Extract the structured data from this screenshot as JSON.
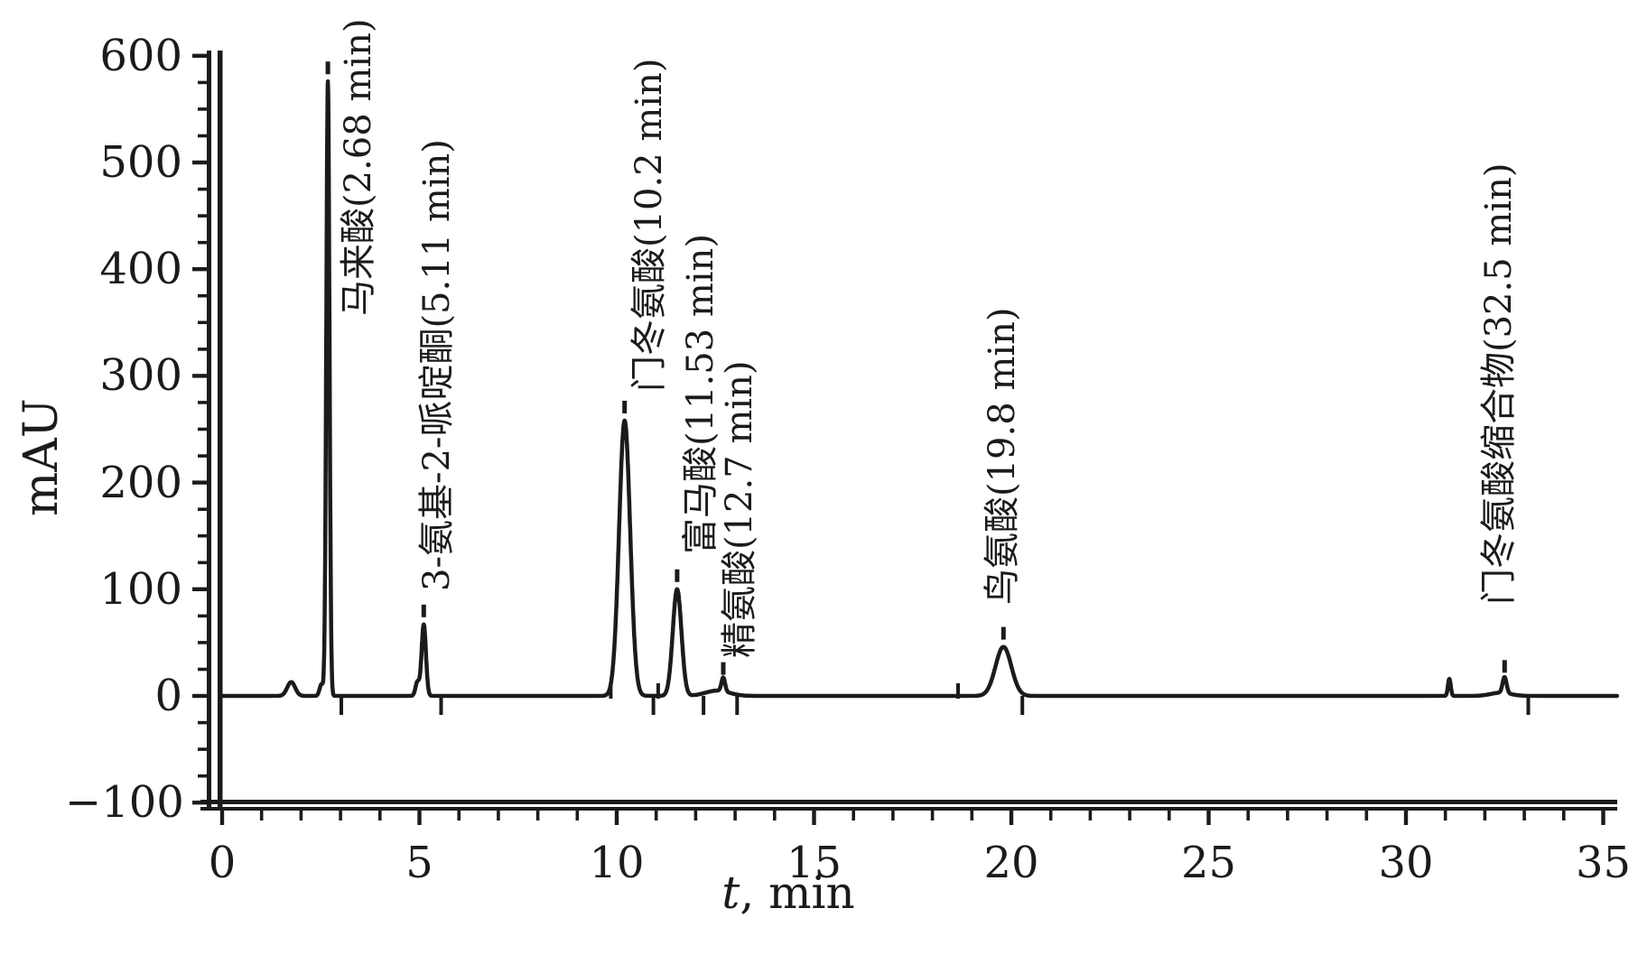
{
  "figure": {
    "y_axis_title": "mAU",
    "x_axis_title_var": "t",
    "x_axis_title_unit": ", min"
  },
  "chart_data": {
    "type": "line",
    "title": "",
    "xlabel": "t, min",
    "ylabel": "mAU",
    "xlim": [
      0,
      35
    ],
    "ylim": [
      -100,
      600
    ],
    "grid": "off",
    "legend": "none",
    "line_color": "#1b1b1b",
    "background_color": "#ffffff",
    "x_major_ticks": [
      0,
      5,
      10,
      15,
      20,
      25,
      30,
      35
    ],
    "x_minor_tick_step_min": 1,
    "y_major_ticks": [
      600,
      500,
      400,
      300,
      200,
      100,
      0,
      -100
    ],
    "y_minor_tick_step_mau": 25,
    "peaks": [
      {
        "name": "马来酸",
        "annotation": "马来酸(2.68 min)",
        "retention_time_min": 2.68,
        "height_mau": 576,
        "sigma_min": 0.04
      },
      {
        "name": "3-氨基-2-哌啶酮",
        "annotation": "3-氨基-2-哌啶酮(5.11 min)",
        "retention_time_min": 5.11,
        "height_mau": 67,
        "sigma_min": 0.055
      },
      {
        "name": "门冬氨酸",
        "annotation": "门冬氨酸(10.2 min)",
        "retention_time_min": 10.2,
        "height_mau": 258,
        "sigma_min": 0.14
      },
      {
        "name": "富马酸",
        "annotation": "富马酸(11.53 min)",
        "retention_time_min": 11.53,
        "height_mau": 100,
        "sigma_min": 0.11
      },
      {
        "name": "精氨酸",
        "annotation": "精氨酸(12.7 min)",
        "retention_time_min": 12.7,
        "height_mau": 13,
        "sigma_min": 0.045
      },
      {
        "name": "鸟氨酸",
        "annotation": "鸟氨酸(19.8 min)",
        "retention_time_min": 19.8,
        "height_mau": 46,
        "sigma_min": 0.2
      },
      {
        "name": "门冬氨酸缩合物",
        "annotation": "门冬氨酸缩合物(32.5 min)",
        "retention_time_min": 32.5,
        "height_mau": 15,
        "sigma_min": 0.05
      }
    ],
    "unlabeled_features": [
      {
        "retention_time_min": 1.75,
        "height_mau": 13,
        "sigma_min": 0.1
      },
      {
        "retention_time_min": 2.52,
        "height_mau": 11,
        "sigma_min": 0.05
      },
      {
        "retention_time_min": 4.95,
        "height_mau": 13,
        "sigma_min": 0.05
      },
      {
        "retention_time_min": 12.55,
        "height_mau": 5,
        "sigma_min": 0.3
      },
      {
        "retention_time_min": 31.1,
        "height_mau": 16,
        "sigma_min": 0.035
      },
      {
        "retention_time_min": 32.4,
        "height_mau": 3,
        "sigma_min": 0.25
      }
    ],
    "peak_boundary_markers": {
      "above_baseline_min": [
        9.85,
        11.05,
        18.65
      ],
      "below_baseline_min": [
        3.02,
        5.55,
        10.93,
        12.2,
        13.05,
        20.28,
        33.1
      ]
    }
  }
}
